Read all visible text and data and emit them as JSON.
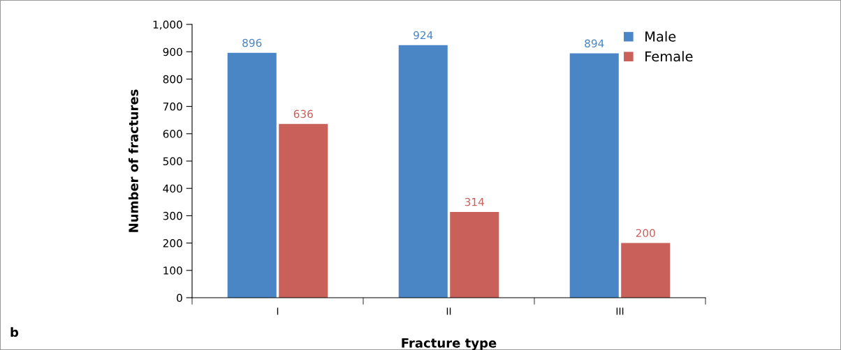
{
  "chart_data": {
    "type": "bar",
    "xlabel": "Fracture type",
    "ylabel": "Number of fractures",
    "categories": [
      "I",
      "II",
      "III"
    ],
    "series": [
      {
        "name": "Male",
        "color": "#4a86c5",
        "values": [
          896,
          924,
          894
        ]
      },
      {
        "name": "Female",
        "color": "#c9605a",
        "values": [
          636,
          314,
          200
        ]
      }
    ],
    "ylim": [
      0,
      1000
    ],
    "yticks": [
      0,
      100,
      200,
      300,
      400,
      500,
      600,
      700,
      800,
      900,
      {
        "value": 1000,
        "label": "1,000"
      }
    ],
    "data_labels": true,
    "grid": false,
    "legend": "top right",
    "annotations": [
      "b"
    ]
  }
}
